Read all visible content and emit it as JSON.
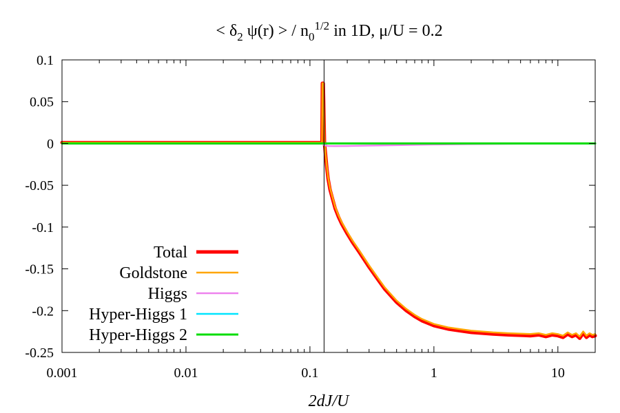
{
  "chart_data": {
    "type": "line",
    "title": {
      "lhs": "< δ",
      "lhs_sub": "2",
      "mid": " ψ(r) > / n",
      "mid_sub": "0",
      "mid_sup": "1/2",
      "rhs": " in 1D, μ/U = 0.2"
    },
    "xlabel": "2dJ/U",
    "ylabel": "",
    "xscale": "log",
    "xlim": [
      0.001,
      20
    ],
    "ylim": [
      -0.25,
      0.1
    ],
    "x_tick_values": [
      0.001,
      0.01,
      0.1,
      1,
      10
    ],
    "x_tick_labels": [
      "0.001",
      "0.01",
      "0.1",
      "1",
      "10"
    ],
    "y_tick_values": [
      0.1,
      0.05,
      0,
      -0.05,
      -0.1,
      -0.15,
      -0.2,
      -0.25
    ],
    "y_tick_labels": [
      "0.1",
      "0.05",
      "0",
      "-0.05",
      "-0.1",
      "-0.15",
      "-0.2",
      "-0.25"
    ],
    "critical_line_x": 0.13,
    "legend_position": "bottom-left",
    "series": [
      {
        "name": "Total",
        "color": "#ff0000",
        "x": [
          0.001,
          0.05,
          0.125,
          0.126,
          0.127,
          0.128,
          0.129,
          0.131,
          0.133,
          0.137,
          0.14,
          0.145,
          0.15,
          0.16,
          0.17,
          0.18,
          0.2,
          0.22,
          0.25,
          0.3,
          0.35,
          0.4,
          0.5,
          0.6,
          0.7,
          0.8,
          1.0,
          1.3,
          1.6,
          2.0,
          3.0,
          4.0,
          5.0,
          6.0,
          7.0,
          8.0,
          9.0,
          10.0,
          11.0,
          12.0,
          13.0,
          14.0,
          15.0,
          16.0,
          17.0,
          18.0,
          19.0,
          20.0
        ],
        "y": [
          0.001,
          0.001,
          0.001,
          0.072,
          0.072,
          0.072,
          0.05,
          0.0,
          -0.01,
          -0.03,
          -0.042,
          -0.055,
          -0.063,
          -0.078,
          -0.088,
          -0.096,
          -0.108,
          -0.118,
          -0.13,
          -0.148,
          -0.162,
          -0.174,
          -0.19,
          -0.2,
          -0.207,
          -0.212,
          -0.218,
          -0.222,
          -0.224,
          -0.226,
          -0.228,
          -0.229,
          -0.2295,
          -0.23,
          -0.229,
          -0.231,
          -0.229,
          -0.23,
          -0.232,
          -0.228,
          -0.231,
          -0.229,
          -0.233,
          -0.227,
          -0.232,
          -0.229,
          -0.231,
          -0.23
        ]
      },
      {
        "name": "Goldstone",
        "color": "#ffa500",
        "x": [
          0.001,
          0.05,
          0.125,
          0.126,
          0.127,
          0.128,
          0.129,
          0.131,
          0.133,
          0.137,
          0.14,
          0.145,
          0.15,
          0.16,
          0.17,
          0.18,
          0.2,
          0.22,
          0.25,
          0.3,
          0.35,
          0.4,
          0.5,
          0.6,
          0.7,
          0.8,
          1.0,
          1.3,
          1.6,
          2.0,
          3.0,
          4.0,
          5.0,
          6.0,
          7.0,
          8.0,
          9.0,
          10.0,
          11.0,
          12.0,
          13.0,
          14.0,
          15.0,
          16.0,
          17.0,
          18.0,
          19.0,
          20.0
        ],
        "y": [
          0.001,
          0.001,
          0.001,
          0.072,
          0.072,
          0.072,
          0.05,
          0.0,
          -0.009,
          -0.028,
          -0.04,
          -0.053,
          -0.061,
          -0.076,
          -0.086,
          -0.094,
          -0.106,
          -0.116,
          -0.128,
          -0.146,
          -0.16,
          -0.172,
          -0.188,
          -0.198,
          -0.205,
          -0.21,
          -0.216,
          -0.22,
          -0.222,
          -0.224,
          -0.226,
          -0.227,
          -0.2275,
          -0.228,
          -0.227,
          -0.229,
          -0.227,
          -0.228,
          -0.23,
          -0.226,
          -0.229,
          -0.227,
          -0.231,
          -0.225,
          -0.23,
          -0.227,
          -0.229,
          -0.228
        ]
      },
      {
        "name": "Higgs",
        "color": "#ee82ee",
        "x": [
          0.001,
          0.128,
          0.13,
          0.14,
          0.16,
          0.2,
          0.3,
          0.5,
          1.0,
          2.0,
          5.0,
          10.0,
          20.0
        ],
        "y": [
          0,
          0,
          -0.002,
          -0.003,
          -0.0032,
          -0.003,
          -0.0025,
          -0.002,
          -0.0012,
          -0.0006,
          -0.0002,
          0,
          0
        ]
      },
      {
        "name": "Hyper-Higgs 1",
        "color": "#00e5ff",
        "x": [
          0.001,
          20.0
        ],
        "y": [
          0,
          0
        ]
      },
      {
        "name": "Hyper-Higgs 2",
        "color": "#00dd00",
        "x": [
          0.001,
          20.0
        ],
        "y": [
          0,
          0
        ]
      }
    ]
  }
}
